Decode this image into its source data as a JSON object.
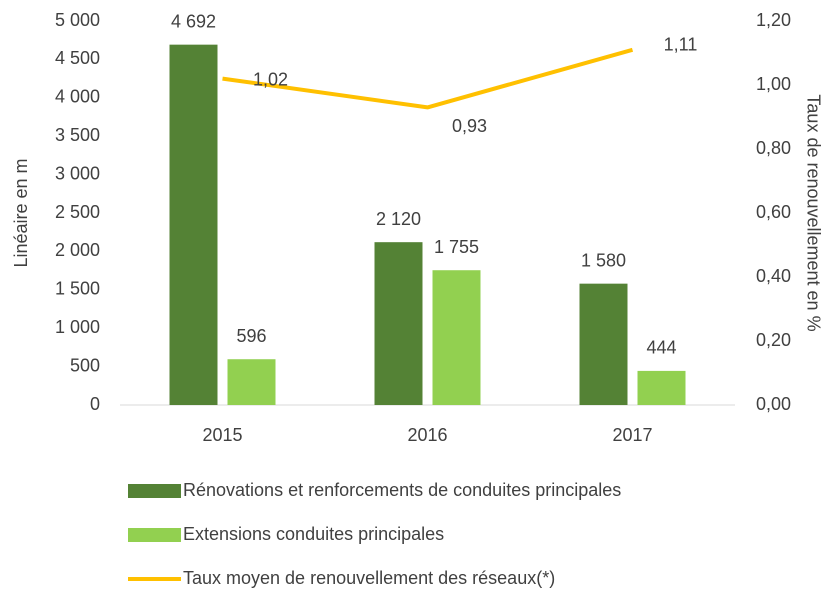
{
  "chart_data": {
    "type": "bar_line",
    "categories": [
      "2015",
      "2016",
      "2017"
    ],
    "y_label": "Linéaire en m",
    "y2_label": "Taux de renouvellement en %",
    "ylim": [
      0,
      5000
    ],
    "yticks": [
      0,
      {
        "value": 500,
        "label": "500"
      },
      {
        "value": 1000,
        "label": "1 000"
      },
      {
        "value": 1500,
        "label": "1 500"
      },
      {
        "value": 2000,
        "label": "2 000"
      },
      {
        "value": 2500,
        "label": "2 500"
      },
      {
        "value": 3000,
        "label": "3 000"
      },
      {
        "value": 3500,
        "label": "3 500"
      },
      {
        "value": 4000,
        "label": "4 000"
      },
      {
        "value": 4500,
        "label": "4 500"
      },
      {
        "value": 5000,
        "label": "5 000"
      }
    ],
    "y2lim": [
      0,
      1.2
    ],
    "y2ticks": [
      {
        "value": 0,
        "label": "0,00"
      },
      {
        "value": 0.2,
        "label": "0,20"
      },
      {
        "value": 0.4,
        "label": "0,40"
      },
      {
        "value": 0.6,
        "label": "0,60"
      },
      {
        "value": 0.8,
        "label": "0,80"
      },
      {
        "value": 1.0,
        "label": "1,00"
      },
      {
        "value": 1.2,
        "label": "1,20"
      }
    ],
    "series": [
      {
        "name": "Rénovations et renforcements de conduites principales",
        "type": "bar",
        "color": "#548235",
        "values": [
          4692,
          2120,
          1580
        ],
        "value_labels": [
          "4 692",
          "2 120",
          "1 580"
        ]
      },
      {
        "name": "Extensions conduites principales",
        "type": "bar",
        "color": "#92d050",
        "values": [
          596,
          1755,
          444
        ],
        "value_labels": [
          "596",
          "1 755",
          "444"
        ]
      },
      {
        "name": "Taux moyen de renouvellement des réseaux(*)",
        "type": "line",
        "axis": "y2",
        "color": "#ffc000",
        "values": [
          1.02,
          0.93,
          1.11
        ],
        "value_labels": [
          "1,02",
          "0,93",
          "1,11"
        ]
      }
    ]
  }
}
